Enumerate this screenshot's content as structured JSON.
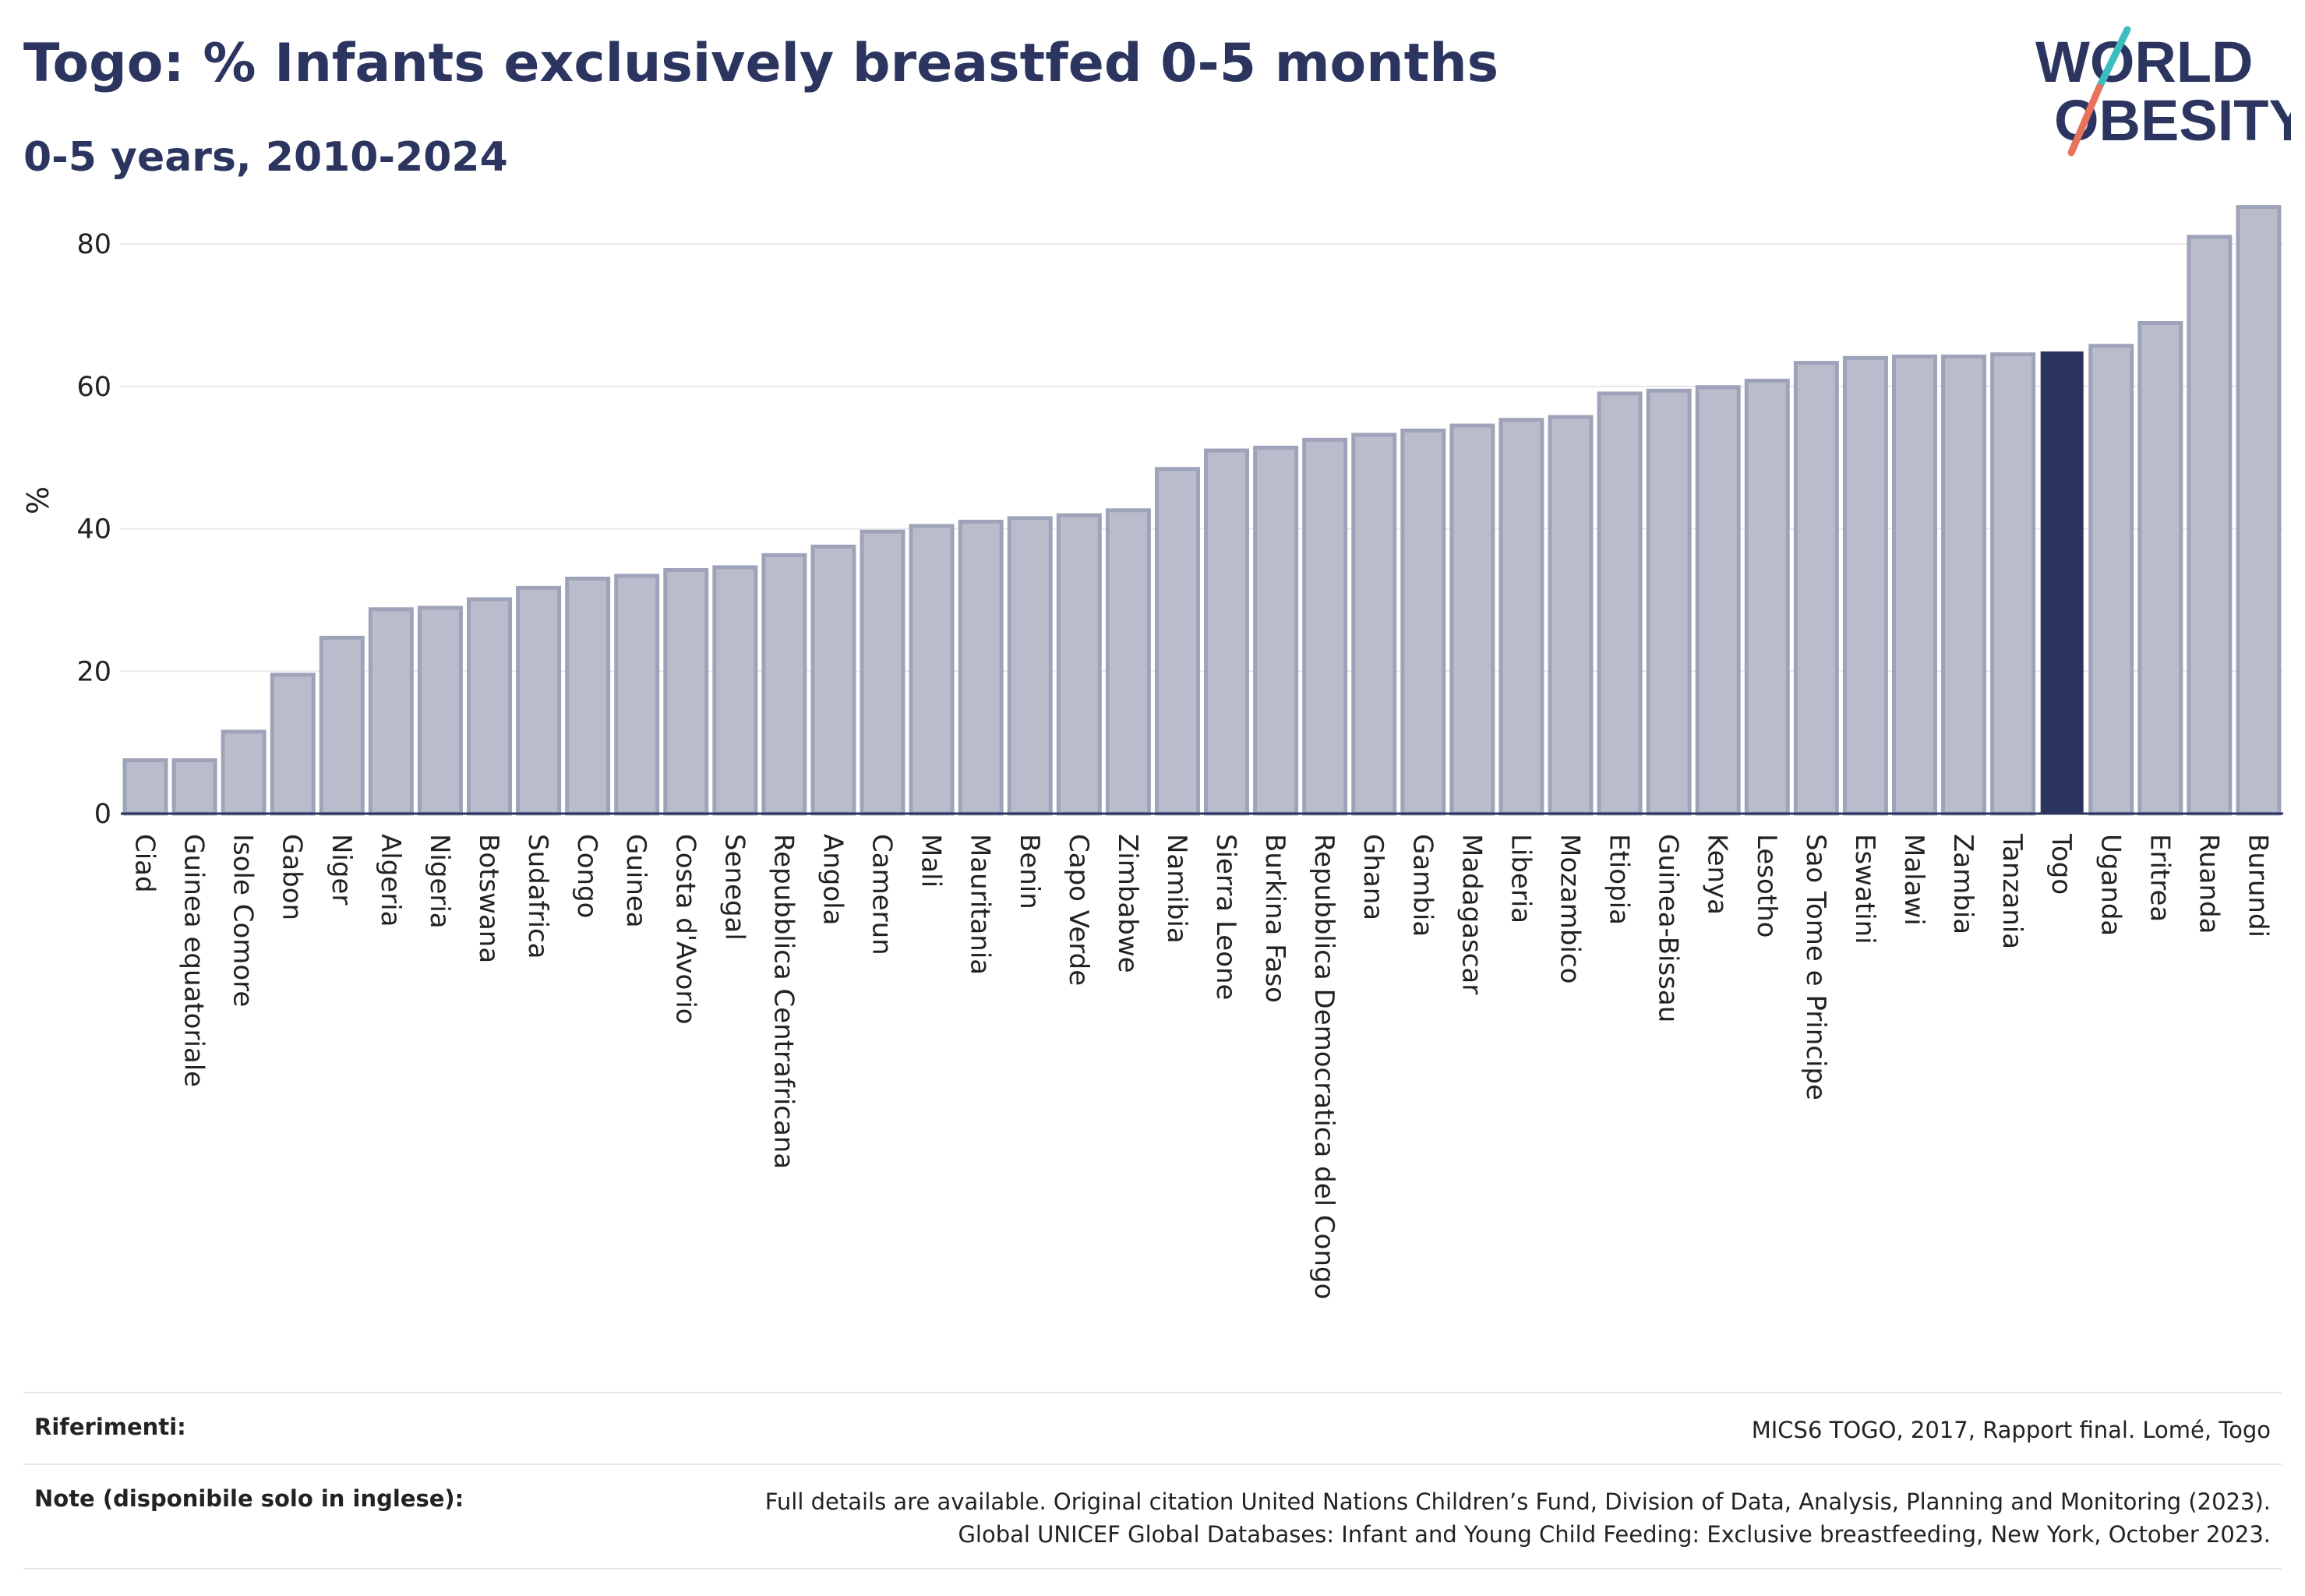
{
  "title": "Togo: % Infants exclusively breastfed 0-5 months",
  "subtitle": "0-5 years, 2010-2024",
  "logo": {
    "line1": "WORLD",
    "line2": "OBESITY"
  },
  "colors": {
    "bar": "#b9bdcb",
    "bar_stroke": "#9ea3b9",
    "highlight": "#2c355f",
    "title": "#2c355f",
    "grid": "#e8e8ec",
    "logo_teal": "#3dbdbf",
    "logo_coral": "#e8735a"
  },
  "chart_data": {
    "type": "bar",
    "title": "",
    "xlabel": "",
    "ylabel": "%",
    "ylim": [
      0,
      88
    ],
    "yticks": [
      0,
      20,
      40,
      60,
      80
    ],
    "grid": true,
    "highlight": "Togo",
    "categories": [
      "Ciad",
      "Guinea equatoriale",
      "Isole Comore",
      "Gabon",
      "Niger",
      "Algeria",
      "Nigeria",
      "Botswana",
      "Sudafrica",
      "Congo",
      "Guinea",
      "Costa d'Avorio",
      "Senegal",
      "Repubblica Centrafricana",
      "Angola",
      "Camerun",
      "Mali",
      "Mauritania",
      "Benin",
      "Capo Verde",
      "Zimbabwe",
      "Namibia",
      "Sierra Leone",
      "Burkina Faso",
      "Repubblica Democratica del Congo",
      "Ghana",
      "Gambia",
      "Madagascar",
      "Liberia",
      "Mozambico",
      "Etiopia",
      "Guinea-Bissau",
      "Kenya",
      "Lesotho",
      "Sao Tome e Principe",
      "Eswatini",
      "Malawi",
      "Zambia",
      "Tanzania",
      "Togo",
      "Uganda",
      "Eritrea",
      "Ruanda",
      "Burundi"
    ],
    "values": [
      7.5,
      7.5,
      11.5,
      19.5,
      24.7,
      28.7,
      28.9,
      30.1,
      31.7,
      33.0,
      33.4,
      34.2,
      34.6,
      36.3,
      37.5,
      39.6,
      40.4,
      41.0,
      41.5,
      41.9,
      42.6,
      48.4,
      51.0,
      51.4,
      52.5,
      53.2,
      53.8,
      54.5,
      55.3,
      55.7,
      59.0,
      59.4,
      59.9,
      60.8,
      63.3,
      64.0,
      64.2,
      64.2,
      64.5,
      64.8,
      65.7,
      68.9,
      81.0,
      85.2
    ]
  },
  "footer": {
    "refs_label": "Riferimenti:",
    "refs_text": "MICS6 TOGO, 2017, Rapport final. Lomé, Togo",
    "notes_label": "Note (disponibile solo in inglese):",
    "notes_line1": "Full details are available. Original citation United Nations Children’s Fund, Division of Data, Analysis, Planning and Monitoring (2023).",
    "notes_line2": "Global UNICEF Global Databases: Infant and Young Child Feeding: Exclusive breastfeeding, New York, October 2023."
  }
}
